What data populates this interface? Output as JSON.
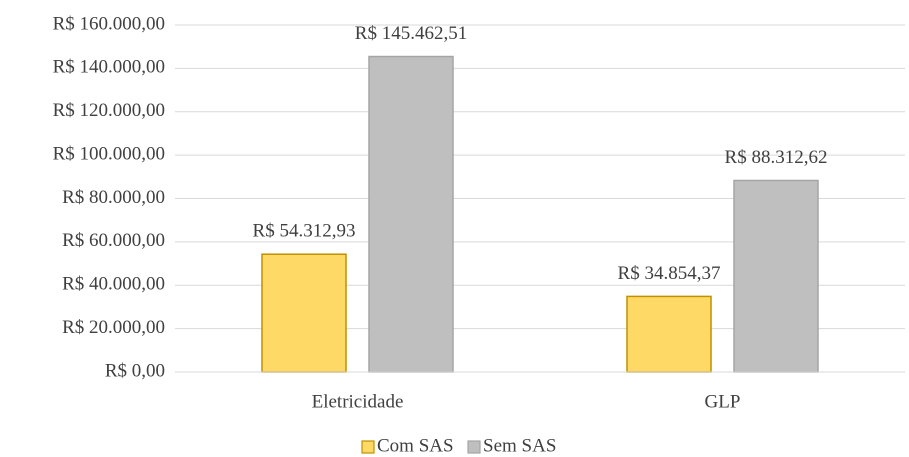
{
  "chart_data": {
    "type": "bar",
    "categories": [
      "Eletricidade",
      "GLP"
    ],
    "series": [
      {
        "name": "Com SAS",
        "color": "#FFD966",
        "stroke": "#BF9000",
        "values": [
          54312.93,
          34854.37
        ],
        "value_labels": [
          "R$ 54.312,93",
          "R$ 34.854,37"
        ]
      },
      {
        "name": "Sem SAS",
        "color": "#BFBFBF",
        "stroke": "#A5A5A5",
        "values": [
          145462.51,
          88312.62
        ],
        "value_labels": [
          "R$ 145.462,51",
          "R$ 88.312,62"
        ]
      }
    ],
    "ylim": [
      0,
      160000
    ],
    "yticks": [
      {
        "value": 0,
        "label": "R$ 0,00"
      },
      {
        "value": 20000,
        "label": "R$ 20.000,00"
      },
      {
        "value": 40000,
        "label": "R$ 40.000,00"
      },
      {
        "value": 60000,
        "label": "R$ 60.000,00"
      },
      {
        "value": 80000,
        "label": "R$ 80.000,00"
      },
      {
        "value": 100000,
        "label": "R$ 100.000,00"
      },
      {
        "value": 120000,
        "label": "R$ 120.000,00"
      },
      {
        "value": 140000,
        "label": "R$ 140.000,00"
      },
      {
        "value": 160000,
        "label": "R$ 160.000,00"
      }
    ],
    "grid": true,
    "legend": "bottom"
  }
}
